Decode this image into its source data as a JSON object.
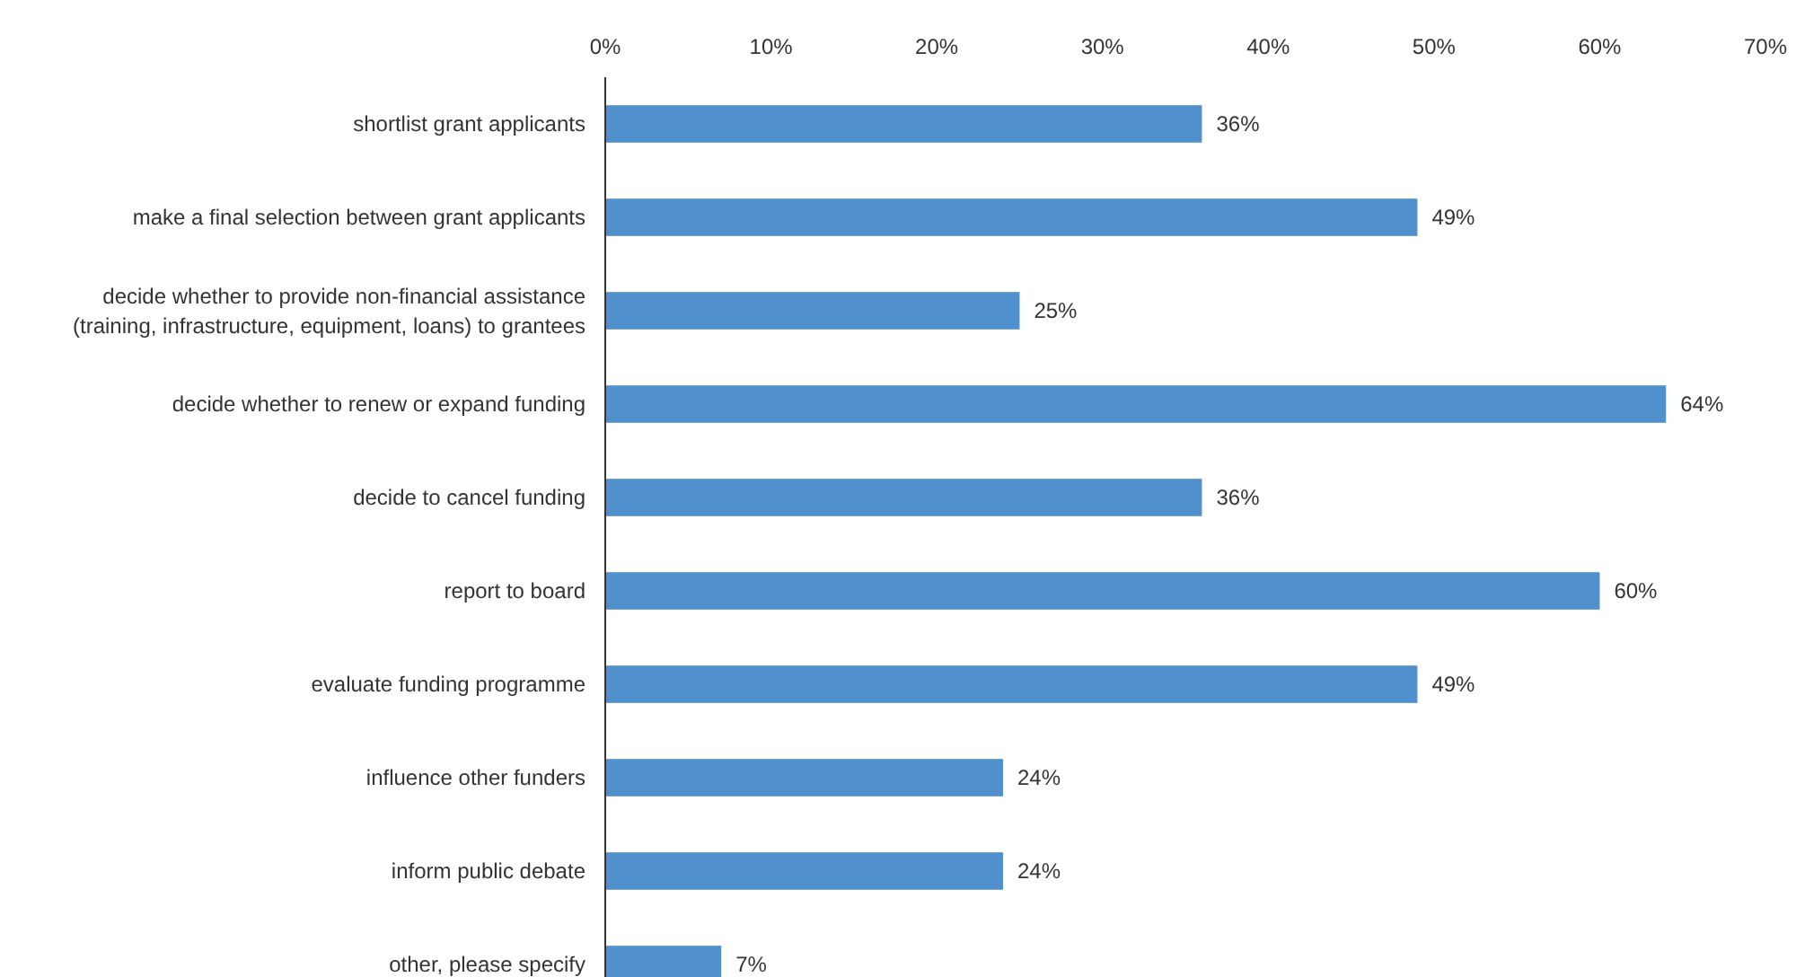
{
  "chart_data": {
    "type": "bar",
    "orientation": "horizontal",
    "categories": [
      "shortlist grant applicants",
      "make a final selection between grant applicants",
      "decide whether to provide non-financial assistance (training, infrastructure, equipment, loans) to grantees",
      "decide whether to renew or expand funding",
      "decide to cancel funding",
      "report to board",
      "evaluate funding programme",
      "influence other funders",
      "inform public debate",
      "other, please specify"
    ],
    "values": [
      36,
      49,
      25,
      64,
      36,
      60,
      49,
      24,
      24,
      7
    ],
    "value_labels": [
      "36%",
      "49%",
      "25%",
      "64%",
      "36%",
      "60%",
      "49%",
      "24%",
      "24%",
      "7%"
    ],
    "color": "#4f90cd",
    "xlim": [
      0,
      70
    ],
    "xticks": [
      {
        "value": 0,
        "label": "0%"
      },
      {
        "value": 10,
        "label": "10%"
      },
      {
        "value": 20,
        "label": "20%"
      },
      {
        "value": 30,
        "label": "30%"
      },
      {
        "value": 40,
        "label": "40%"
      },
      {
        "value": 50,
        "label": "50%"
      },
      {
        "value": 60,
        "label": "60%"
      },
      {
        "value": 70,
        "label": "70%"
      }
    ],
    "grid": false
  }
}
